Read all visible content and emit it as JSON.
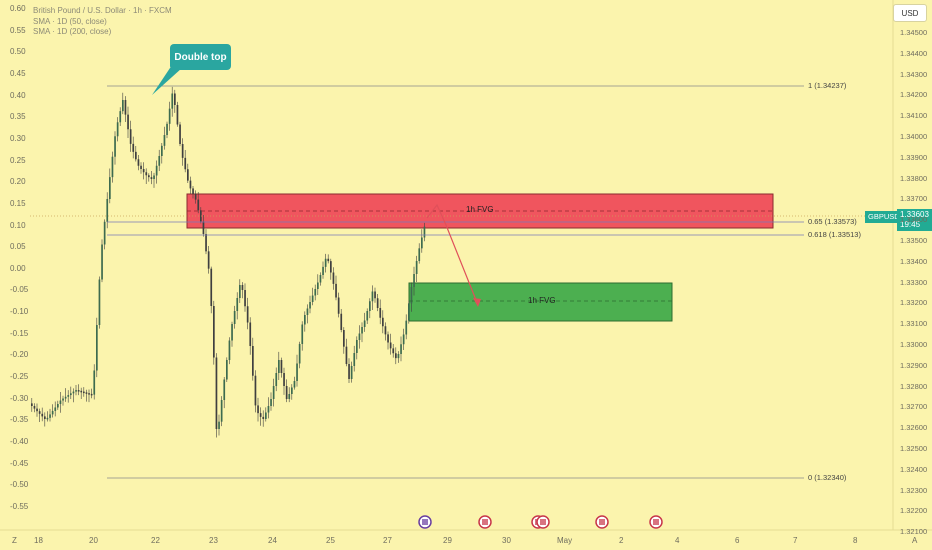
{
  "legend": {
    "title": "British Pound / U.S. Dollar · 1h · FXCM",
    "sma50": "SMA · 1D (50, close)",
    "sma200": "SMA · 1D (200, close)"
  },
  "callout": "Double top",
  "currency_button": "USD",
  "symbol_tag": "GBPUSD",
  "current_price": "1.33603",
  "countdown": "19:45",
  "fvg_upper_label": "1h FVG",
  "fvg_lower_label": "1h FVG",
  "fib_levels": [
    {
      "label": "1 (1.34237)"
    },
    {
      "label": "0.65 (1.33573)"
    },
    {
      "label": "0.618 (1.33513)"
    },
    {
      "label": "0 (1.32340)"
    }
  ],
  "left_axis": [
    "0.60",
    "0.55",
    "0.50",
    "0.45",
    "0.40",
    "0.35",
    "0.30",
    "0.25",
    "0.20",
    "0.15",
    "0.10",
    "0.05",
    "0.00",
    "-0.05",
    "-0.10",
    "-0.15",
    "-0.20",
    "-0.25",
    "-0.30",
    "-0.35",
    "-0.40",
    "-0.45",
    "-0.50",
    "-0.55"
  ],
  "right_axis": [
    "1.34500",
    "1.34400",
    "1.34300",
    "1.34200",
    "1.34100",
    "1.34000",
    "1.33900",
    "1.33800",
    "1.33700",
    "1.33600",
    "1.33500",
    "1.33400",
    "1.33300",
    "1.33200",
    "1.33100",
    "1.33000",
    "1.32900",
    "1.32800",
    "1.32700",
    "1.32600",
    "1.32500",
    "1.32400",
    "1.32300",
    "1.32200",
    "1.32100"
  ],
  "x_axis": [
    "18",
    "20",
    "22",
    "23",
    "24",
    "25",
    "27",
    "29",
    "30",
    "May",
    "2",
    "4",
    "6",
    "7",
    "8"
  ],
  "corner_left": "Z",
  "corner_right": "A",
  "colors": {
    "background": "#fbf4ad",
    "fvg_red": "#f0555e",
    "fvg_green": "#4caf50",
    "candle": "#3f3f3f",
    "accent": "#22ab94"
  }
}
